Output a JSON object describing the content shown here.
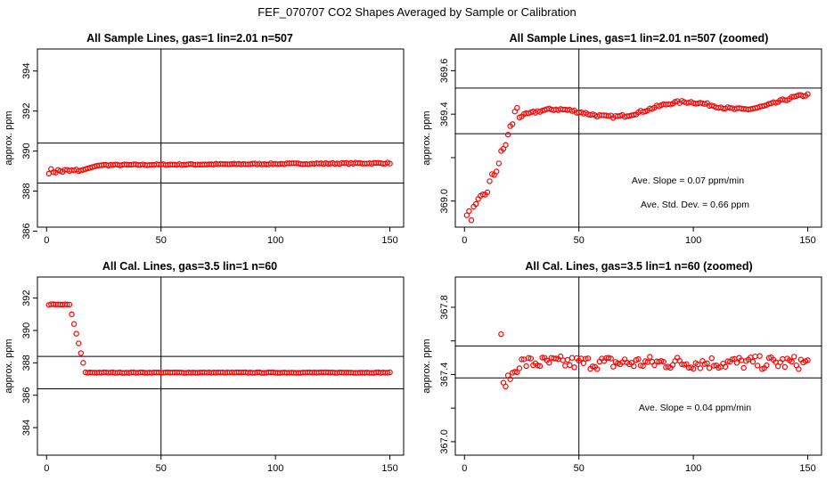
{
  "page": {
    "title": "FEF_070707  CO2 Shapes Averaged by Sample or Calibration"
  },
  "colors": {
    "points": "#ff0000",
    "axes": "#000000",
    "background": "#ffffff"
  },
  "chart_data": [
    {
      "type": "scatter",
      "title": "All Sample Lines, gas=1 lin=2.01 n=507",
      "xlabel": "",
      "ylabel": "approx. ppm",
      "xlim": [
        -4,
        156
      ],
      "ylim": [
        386.2,
        395.1
      ],
      "xticks": [
        0,
        50,
        100,
        150
      ],
      "yticks": [
        386,
        388,
        390,
        392,
        394
      ],
      "ytick_labels": [
        "386",
        "388",
        "390",
        "392",
        "394"
      ],
      "hlines": [
        390.4,
        388.4
      ],
      "vline": 50,
      "model": {
        "kind": "plateau",
        "start": 389.0,
        "plateau": 389.3,
        "drift": 0.1,
        "rise_start": 14,
        "rise_end": 23,
        "noise": 0.06
      },
      "annotations": []
    },
    {
      "type": "scatter",
      "title": "All Sample Lines, gas=1 lin=2.01 n=507 (zoomed)",
      "xlabel": "",
      "ylabel": "approx. ppm",
      "xlim": [
        -4,
        156
      ],
      "ylim": [
        368.88,
        369.7
      ],
      "xticks": [
        0,
        50,
        100,
        150
      ],
      "yticks": [
        369.0,
        369.2,
        369.4,
        369.6
      ],
      "ytick_labels": [
        "369.0",
        "",
        "369.4",
        "369.6"
      ],
      "hlines": [
        369.52,
        369.31
      ],
      "vline": 50,
      "model": {
        "kind": "rise",
        "start": 368.92,
        "level": 369.41,
        "rise_end": 24,
        "wave": 0.025,
        "slope": 0.0006,
        "noise": 0.012
      },
      "annotations": [
        {
          "text": "Ave. Slope =  0.07  ppm/min"
        },
        {
          "text": "Ave. Std. Dev. =  0.66  ppm"
        }
      ]
    },
    {
      "type": "scatter",
      "title": "All Cal. Lines, gas=3.5 lin=1 n=60",
      "xlabel": "",
      "ylabel": "approx. ppm",
      "xlim": [
        -4,
        156
      ],
      "ylim": [
        382.3,
        393.3
      ],
      "xticks": [
        0,
        50,
        100,
        150
      ],
      "yticks": [
        384,
        386,
        388,
        390,
        392
      ],
      "ytick_labels": [
        "384",
        "386",
        "388",
        "390",
        "392"
      ],
      "hlines": [
        388.4,
        386.4
      ],
      "vline": 50,
      "model": {
        "kind": "drop",
        "start": 391.6,
        "level": 387.4,
        "drop_start": 10,
        "drop_end": 17,
        "noise": 0.04
      },
      "annotations": []
    },
    {
      "type": "scatter",
      "title": "All Cal. Lines, gas=3.5 lin=1 n=60 (zoomed)",
      "xlabel": "",
      "ylabel": "approx. ppm",
      "xlim": [
        -4,
        156
      ],
      "ylim": [
        366.92,
        367.98
      ],
      "xticks": [
        0,
        50,
        100,
        150
      ],
      "yticks": [
        367.0,
        367.2,
        367.4,
        367.6,
        367.8
      ],
      "ytick_labels": [
        "367.0",
        "",
        "367.4",
        "",
        "367.8"
      ],
      "hlines": [
        367.57,
        367.38
      ],
      "vline": 50,
      "model": {
        "kind": "noisy",
        "start_x": 16,
        "spike": 367.64,
        "dip": 367.32,
        "level": 367.47,
        "noise": 0.04
      },
      "annotations": [
        {
          "text": "Ave. Slope =  0.04  ppm/min"
        }
      ]
    }
  ]
}
